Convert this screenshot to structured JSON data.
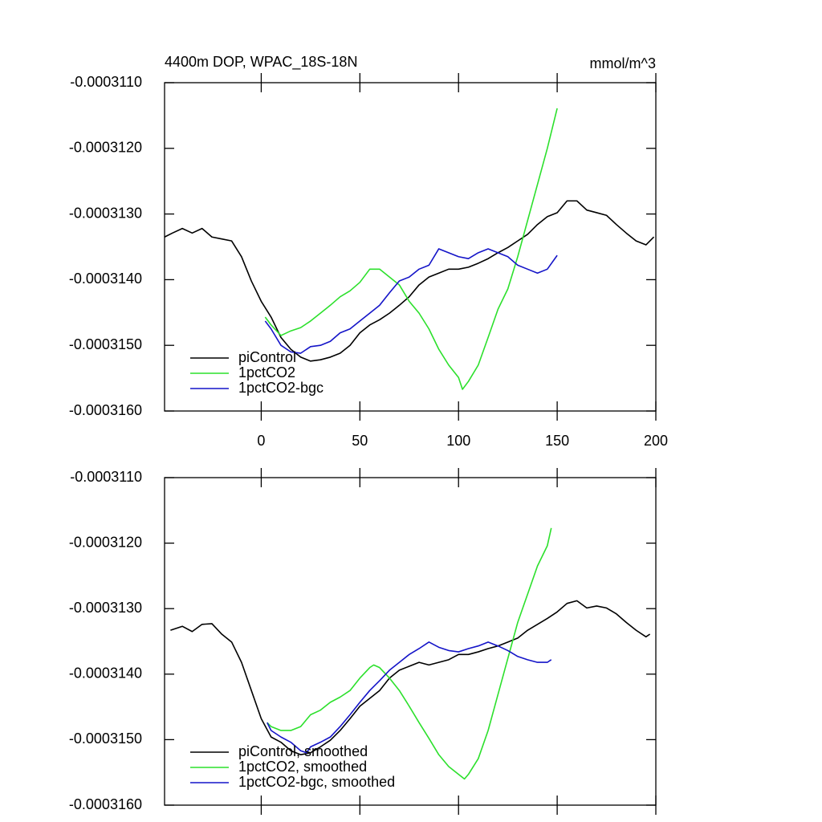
{
  "chart_data": [
    {
      "type": "line",
      "title": "4400m DOP, WPAC_18S-18N",
      "units": "mmol/m^3",
      "xlim": [
        -49,
        200
      ],
      "xticks": [
        0,
        50,
        100,
        150,
        200
      ],
      "xtick_labels": true,
      "ylim": [
        -0.000316,
        -0.000311
      ],
      "yticks": [
        {
          "value": -0.000311,
          "label": "-0.0003110"
        },
        {
          "value": -0.000312,
          "label": "-0.0003120"
        },
        {
          "value": -0.000313,
          "label": "-0.0003130"
        },
        {
          "value": -0.000314,
          "label": "-0.0003140"
        },
        {
          "value": -0.000315,
          "label": "-0.0003150"
        },
        {
          "value": -0.000316,
          "label": "-0.0003160"
        }
      ],
      "legend": "lower left",
      "series": [
        {
          "name": "piControl",
          "color": "#000000",
          "x": [
            -49,
            -45,
            -40,
            -35,
            -30,
            -25,
            -20,
            -15,
            -10,
            -5,
            0,
            5,
            10,
            15,
            20,
            25,
            30,
            35,
            40,
            45,
            50,
            55,
            60,
            65,
            70,
            75,
            80,
            85,
            90,
            95,
            100,
            105,
            110,
            115,
            120,
            125,
            130,
            135,
            140,
            145,
            150,
            155,
            160,
            165,
            170,
            175,
            180,
            185,
            190,
            195,
            199
          ],
          "values": [
            -0.00031335,
            -0.00031329,
            -0.00031322,
            -0.00031329,
            -0.00031322,
            -0.00031335,
            -0.00031338,
            -0.00031341,
            -0.00031365,
            -0.00031402,
            -0.00031433,
            -0.00031457,
            -0.00031488,
            -0.00031506,
            -0.00031518,
            -0.00031524,
            -0.00031522,
            -0.00031518,
            -0.00031512,
            -0.000315,
            -0.00031481,
            -0.00031469,
            -0.00031461,
            -0.00031451,
            -0.00031439,
            -0.00031426,
            -0.00031408,
            -0.00031396,
            -0.0003139,
            -0.00031384,
            -0.00031384,
            -0.00031381,
            -0.00031375,
            -0.00031368,
            -0.00031359,
            -0.00031351,
            -0.00031341,
            -0.00031331,
            -0.00031316,
            -0.00031304,
            -0.00031298,
            -0.0003128,
            -0.0003128,
            -0.00031294,
            -0.00031298,
            -0.00031302,
            -0.00031316,
            -0.00031329,
            -0.00031341,
            -0.00031347,
            -0.00031335
          ]
        },
        {
          "name": "1pctCO2",
          "color": "#2ce02c",
          "x": [
            2,
            5,
            10,
            15,
            20,
            25,
            30,
            35,
            40,
            45,
            50,
            55,
            60,
            65,
            70,
            75,
            80,
            85,
            90,
            95,
            100,
            102,
            105,
            110,
            115,
            120,
            125,
            130,
            135,
            140,
            145,
            150
          ],
          "values": [
            -0.00031457,
            -0.00031469,
            -0.00031485,
            -0.00031478,
            -0.00031473,
            -0.00031463,
            -0.00031451,
            -0.00031439,
            -0.00031426,
            -0.00031417,
            -0.00031404,
            -0.00031384,
            -0.00031384,
            -0.00031396,
            -0.00031408,
            -0.00031433,
            -0.00031451,
            -0.00031475,
            -0.00031506,
            -0.0003153,
            -0.00031549,
            -0.00031567,
            -0.00031555,
            -0.0003153,
            -0.00031488,
            -0.00031445,
            -0.00031414,
            -0.00031365,
            -0.0003131,
            -0.00031255,
            -0.000312,
            -0.00031139
          ]
        },
        {
          "name": "1pctCO2-bgc",
          "color": "#1414c8",
          "x": [
            2,
            5,
            10,
            15,
            20,
            25,
            30,
            35,
            40,
            45,
            50,
            55,
            60,
            65,
            70,
            75,
            80,
            85,
            90,
            95,
            100,
            105,
            110,
            115,
            120,
            125,
            130,
            135,
            140,
            145,
            150
          ],
          "values": [
            -0.00031463,
            -0.00031475,
            -0.000315,
            -0.0003151,
            -0.00031512,
            -0.00031502,
            -0.000315,
            -0.00031494,
            -0.00031481,
            -0.00031475,
            -0.00031463,
            -0.00031451,
            -0.00031439,
            -0.0003142,
            -0.00031402,
            -0.00031396,
            -0.00031384,
            -0.00031378,
            -0.00031353,
            -0.00031359,
            -0.00031365,
            -0.00031368,
            -0.00031359,
            -0.00031353,
            -0.00031359,
            -0.00031365,
            -0.00031378,
            -0.00031384,
            -0.0003139,
            -0.00031384,
            -0.00031363
          ]
        }
      ]
    },
    {
      "type": "line",
      "xlim": [
        -49,
        200
      ],
      "xticks": [
        0,
        50,
        100,
        150,
        200
      ],
      "xtick_labels": false,
      "ylim": [
        -0.000316,
        -0.000311
      ],
      "yticks": [
        {
          "value": -0.000311,
          "label": "-0.0003110"
        },
        {
          "value": -0.000312,
          "label": "-0.0003120"
        },
        {
          "value": -0.000313,
          "label": "-0.0003130"
        },
        {
          "value": -0.000314,
          "label": "-0.0003140"
        },
        {
          "value": -0.000315,
          "label": "-0.0003150"
        },
        {
          "value": -0.000316,
          "label": "-0.0003160"
        }
      ],
      "legend": "lower left",
      "series": [
        {
          "name": "piControl, smoothed",
          "color": "#000000",
          "x": [
            -46,
            -40,
            -35,
            -30,
            -25,
            -20,
            -15,
            -10,
            -5,
            0,
            5,
            10,
            15,
            20,
            25,
            30,
            35,
            40,
            45,
            50,
            55,
            60,
            65,
            70,
            75,
            80,
            85,
            90,
            95,
            100,
            105,
            110,
            115,
            120,
            125,
            130,
            135,
            140,
            145,
            150,
            155,
            160,
            165,
            170,
            175,
            180,
            185,
            190,
            195,
            197
          ],
          "values": [
            -0.00031333,
            -0.00031327,
            -0.00031335,
            -0.00031324,
            -0.00031323,
            -0.00031339,
            -0.00031351,
            -0.00031382,
            -0.00031425,
            -0.00031468,
            -0.00031496,
            -0.00031504,
            -0.00031517,
            -0.00031523,
            -0.0003152,
            -0.00031511,
            -0.00031501,
            -0.00031486,
            -0.00031468,
            -0.00031449,
            -0.00031437,
            -0.00031425,
            -0.00031406,
            -0.00031394,
            -0.00031388,
            -0.00031382,
            -0.00031386,
            -0.00031382,
            -0.00031378,
            -0.0003137,
            -0.0003137,
            -0.00031366,
            -0.00031361,
            -0.00031357,
            -0.00031351,
            -0.00031345,
            -0.00031333,
            -0.00031324,
            -0.00031315,
            -0.00031305,
            -0.00031292,
            -0.00031288,
            -0.00031299,
            -0.00031296,
            -0.00031299,
            -0.00031308,
            -0.00031321,
            -0.00031333,
            -0.00031343,
            -0.00031339
          ]
        },
        {
          "name": "1pctCO2, smoothed",
          "color": "#2ce02c",
          "x": [
            3,
            5,
            10,
            15,
            20,
            25,
            30,
            35,
            40,
            45,
            50,
            55,
            57,
            60,
            65,
            70,
            75,
            80,
            85,
            90,
            95,
            100,
            103,
            105,
            110,
            115,
            120,
            125,
            130,
            135,
            140,
            145,
            147
          ],
          "values": [
            -0.00031474,
            -0.0003148,
            -0.00031486,
            -0.00031486,
            -0.0003148,
            -0.00031462,
            -0.00031455,
            -0.00031443,
            -0.00031435,
            -0.00031425,
            -0.00031406,
            -0.0003139,
            -0.00031386,
            -0.0003139,
            -0.00031406,
            -0.00031425,
            -0.00031449,
            -0.00031474,
            -0.00031498,
            -0.00031523,
            -0.00031541,
            -0.00031553,
            -0.0003156,
            -0.00031553,
            -0.00031529,
            -0.00031486,
            -0.00031431,
            -0.00031376,
            -0.00031321,
            -0.00031278,
            -0.00031235,
            -0.00031204,
            -0.00031177
          ]
        },
        {
          "name": "1pctCO2-bgc, smoothed",
          "color": "#1414c8",
          "x": [
            3,
            5,
            10,
            15,
            20,
            23,
            25,
            30,
            35,
            40,
            45,
            50,
            55,
            60,
            65,
            70,
            75,
            80,
            85,
            90,
            95,
            100,
            105,
            110,
            115,
            120,
            125,
            130,
            135,
            140,
            145,
            147
          ],
          "values": [
            -0.00031474,
            -0.00031486,
            -0.00031496,
            -0.00031504,
            -0.00031517,
            -0.0003152,
            -0.00031511,
            -0.00031504,
            -0.00031496,
            -0.0003148,
            -0.00031462,
            -0.00031443,
            -0.00031425,
            -0.0003141,
            -0.00031394,
            -0.00031382,
            -0.0003137,
            -0.00031361,
            -0.00031351,
            -0.00031359,
            -0.00031364,
            -0.00031366,
            -0.00031361,
            -0.00031357,
            -0.00031351,
            -0.00031357,
            -0.00031364,
            -0.00031373,
            -0.00031378,
            -0.00031382,
            -0.00031382,
            -0.00031378
          ]
        }
      ]
    }
  ]
}
